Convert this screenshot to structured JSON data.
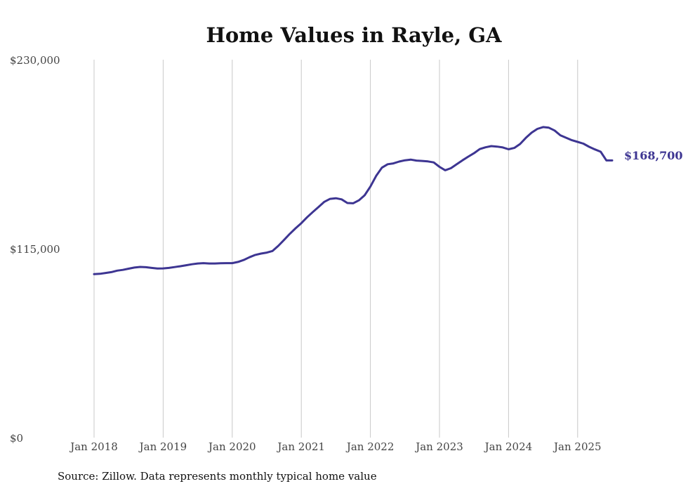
{
  "chart_data": {
    "type": "line",
    "title": "Home Values in Rayle, GA",
    "xlabel": "",
    "ylabel": "",
    "ylim": [
      0,
      230000
    ],
    "y_ticks": [
      {
        "value": 0,
        "label": "$0"
      },
      {
        "value": 115000,
        "label": "$115,000"
      },
      {
        "value": 230000,
        "label": "$230,000"
      }
    ],
    "x_ticks": [
      {
        "date": "2018-01",
        "label": "Jan 2018"
      },
      {
        "date": "2019-01",
        "label": "Jan 2019"
      },
      {
        "date": "2020-01",
        "label": "Jan 2020"
      },
      {
        "date": "2021-01",
        "label": "Jan 2021"
      },
      {
        "date": "2022-01",
        "label": "Jan 2022"
      },
      {
        "date": "2023-01",
        "label": "Jan 2023"
      },
      {
        "date": "2024-01",
        "label": "Jan 2024"
      },
      {
        "date": "2025-01",
        "label": "Jan 2025"
      }
    ],
    "grid": "vertical",
    "legend": "none",
    "series": [
      {
        "color": "#3d3592",
        "end_label": "$168,700",
        "x": [
          "2018-01",
          "2018-02",
          "2018-03",
          "2018-04",
          "2018-05",
          "2018-06",
          "2018-07",
          "2018-08",
          "2018-09",
          "2018-10",
          "2018-11",
          "2018-12",
          "2019-01",
          "2019-02",
          "2019-03",
          "2019-04",
          "2019-05",
          "2019-06",
          "2019-07",
          "2019-08",
          "2019-09",
          "2019-10",
          "2019-11",
          "2019-12",
          "2020-01",
          "2020-02",
          "2020-03",
          "2020-04",
          "2020-05",
          "2020-06",
          "2020-07",
          "2020-08",
          "2020-09",
          "2020-10",
          "2020-11",
          "2020-12",
          "2021-01",
          "2021-02",
          "2021-03",
          "2021-04",
          "2021-05",
          "2021-06",
          "2021-07",
          "2021-08",
          "2021-09",
          "2021-10",
          "2021-11",
          "2021-12",
          "2022-01",
          "2022-02",
          "2022-03",
          "2022-04",
          "2022-05",
          "2022-06",
          "2022-07",
          "2022-08",
          "2022-09",
          "2022-10",
          "2022-11",
          "2022-12",
          "2023-01",
          "2023-02",
          "2023-03",
          "2023-04",
          "2023-05",
          "2023-06",
          "2023-07",
          "2023-08",
          "2023-09",
          "2023-10",
          "2023-11",
          "2023-12",
          "2024-01",
          "2024-02",
          "2024-03",
          "2024-04",
          "2024-05",
          "2024-06",
          "2024-07",
          "2024-08",
          "2024-09",
          "2024-10",
          "2024-11",
          "2024-12",
          "2025-01",
          "2025-02",
          "2025-03",
          "2025-04",
          "2025-05",
          "2025-06",
          "2025-07"
        ],
        "values": [
          99500,
          99700,
          100200,
          100700,
          101600,
          102100,
          102800,
          103500,
          103900,
          103700,
          103300,
          102900,
          103000,
          103300,
          103800,
          104300,
          104900,
          105500,
          106000,
          106200,
          106000,
          106000,
          106100,
          106200,
          106200,
          106900,
          108100,
          109800,
          111200,
          112000,
          112600,
          113600,
          116700,
          120300,
          124000,
          127400,
          130500,
          134100,
          137300,
          140400,
          143500,
          145300,
          145700,
          145000,
          142800,
          142600,
          144400,
          147500,
          152800,
          159300,
          164300,
          166400,
          166900,
          168000,
          168800,
          169200,
          168600,
          168400,
          168100,
          167500,
          164800,
          162700,
          164000,
          166400,
          168800,
          171000,
          173100,
          175600,
          176700,
          177400,
          177100,
          176600,
          175500,
          176300,
          178700,
          182400,
          185600,
          187900,
          189000,
          188600,
          186900,
          184000,
          182500,
          181000,
          180000,
          178900,
          177000,
          175400,
          174000,
          168700,
          168700
        ]
      }
    ],
    "source": "Source: Zillow. Data represents monthly typical home value"
  }
}
